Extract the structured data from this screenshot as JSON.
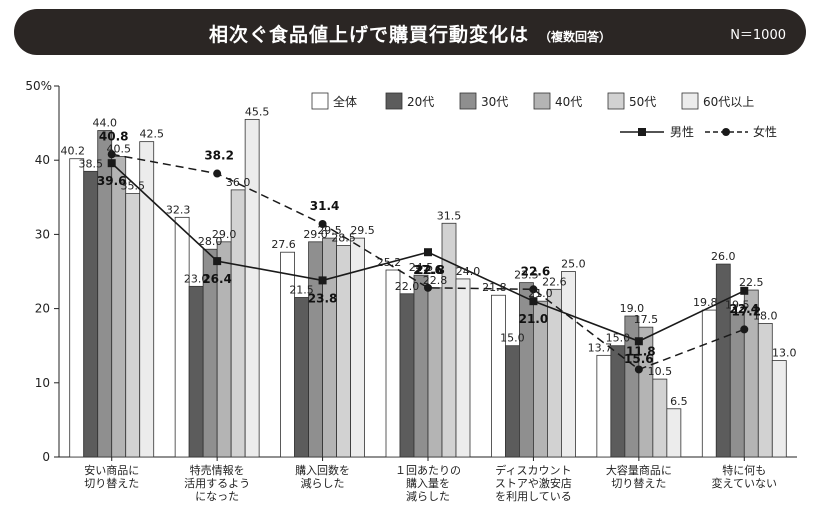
{
  "title": "相次ぐ食品値上げで購買行動変化は",
  "title_note": "（複数回答）",
  "sample_size": "N＝1000",
  "chart_data": {
    "type": "bar",
    "y_unit_label": "50%",
    "ylim": [
      0,
      50
    ],
    "yticks": [
      0,
      10,
      20,
      30,
      40
    ],
    "grid": false,
    "categories": [
      [
        "安い商品に",
        "切り替えた"
      ],
      [
        "特売情報を",
        "活用するよう",
        "になった"
      ],
      [
        "購入回数を",
        "減らした"
      ],
      [
        "１回あたりの",
        "購入量を",
        "減らした"
      ],
      [
        "ディスカウント",
        "ストアや激安店",
        "を利用している"
      ],
      [
        "大容量商品に",
        "切り替えた"
      ],
      [
        "特に何も",
        "変えていない"
      ]
    ],
    "series": [
      {
        "name": "全体",
        "color": "#ffffff",
        "values": [
          40.2,
          32.3,
          27.6,
          25.2,
          21.8,
          13.7,
          19.8
        ]
      },
      {
        "name": "20代",
        "color": "#5c5c5c",
        "values": [
          38.5,
          23.0,
          21.5,
          22.0,
          15.0,
          15.0,
          26.0
        ]
      },
      {
        "name": "30代",
        "color": "#8f8f8f",
        "values": [
          44.0,
          28.0,
          29.0,
          24.5,
          23.5,
          19.0,
          19.5
        ]
      },
      {
        "name": "40代",
        "color": "#b4b4b4",
        "values": [
          40.5,
          29.0,
          29.5,
          22.8,
          21.0,
          17.5,
          22.5
        ]
      },
      {
        "name": "50代",
        "color": "#d2d2d2",
        "values": [
          35.5,
          36.0,
          28.5,
          31.5,
          22.6,
          10.5,
          18.0
        ]
      },
      {
        "name": "60代以上",
        "color": "#ececec",
        "values": [
          42.5,
          45.5,
          29.5,
          24.0,
          25.0,
          6.5,
          13.0
        ]
      }
    ],
    "lines": [
      {
        "name": "男性",
        "style": "solid",
        "marker": "square",
        "values": [
          39.6,
          26.4,
          23.8,
          27.6,
          21.0,
          15.6,
          22.4
        ]
      },
      {
        "name": "女性",
        "style": "dashed",
        "marker": "circle",
        "values": [
          40.8,
          38.2,
          31.4,
          22.8,
          22.6,
          11.8,
          17.2
        ]
      }
    ],
    "value_labels": {
      "bars": [
        [
          "40.2",
          "38.5",
          "44.0",
          "40.5",
          "35.5",
          "42.5"
        ],
        [
          "32.3",
          "23.0",
          "28.0",
          "29.0",
          "36.0",
          "45.5"
        ],
        [
          "27.6",
          "21.5",
          "29.0",
          "29.5",
          "28.5",
          "29.5"
        ],
        [
          "25.2",
          "22.0",
          "24.5",
          "22.8",
          "31.5",
          "24.0"
        ],
        [
          "21.8",
          "15.0",
          "23.5",
          "21.0",
          "22.6",
          "25.0"
        ],
        [
          "13.7",
          "15.0",
          "19.0",
          "17.5",
          "10.5",
          "6.5"
        ],
        [
          "19.8",
          "26.0",
          "19.5",
          "22.5",
          "18.0",
          "13.0"
        ]
      ],
      "male": [
        "39.6",
        "26.4",
        "23.8",
        "27.6",
        "21.0",
        "15.6",
        "22.4"
      ],
      "female": [
        "40.8",
        "38.2",
        "31.4",
        "22.8",
        "22.6",
        "11.8",
        "17.2"
      ]
    }
  }
}
